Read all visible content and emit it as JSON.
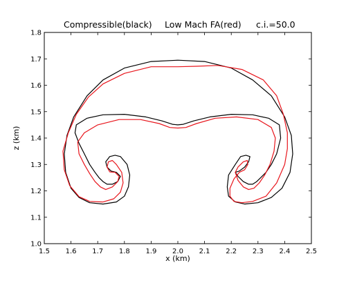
{
  "chart_data": {
    "type": "line",
    "title_parts": [
      "Compressible(black)",
      "Low Mach FA(red)",
      "c.i.=50.0"
    ],
    "xlabel": "x (km)",
    "ylabel": "z (km)",
    "xlim": [
      1.5,
      2.5
    ],
    "ylim": [
      1.0,
      1.8
    ],
    "xticks": [
      "1.5",
      "1.6",
      "1.7",
      "1.8",
      "1.9",
      "2.0",
      "2.1",
      "2.2",
      "2.3",
      "2.4",
      "2.5"
    ],
    "yticks": [
      "1.0",
      "1.1",
      "1.2",
      "1.3",
      "1.4",
      "1.5",
      "1.6",
      "1.7",
      "1.8"
    ],
    "grid": false,
    "series": [
      {
        "name": "Compressible",
        "color": "#000000",
        "x": [
          2.0,
          1.9,
          1.8,
          1.72,
          1.66,
          1.61,
          1.585,
          1.575,
          1.58,
          1.6,
          1.63,
          1.67,
          1.72,
          1.77,
          1.8,
          1.815,
          1.82,
          1.81,
          1.785,
          1.765,
          1.745,
          1.73,
          1.735,
          1.75,
          1.77,
          1.785,
          1.775,
          1.755,
          1.735,
          1.72,
          1.705,
          1.69,
          1.67,
          1.65,
          1.63,
          1.615,
          1.62,
          1.66,
          1.72,
          1.8,
          1.88,
          1.94,
          1.98,
          2.0,
          2.02,
          2.06,
          2.12,
          2.2,
          2.28,
          2.34,
          2.38,
          2.385,
          2.37,
          2.35,
          2.33,
          2.31,
          2.295,
          2.28,
          2.265,
          2.245,
          2.225,
          2.215,
          2.23,
          2.25,
          2.265,
          2.27,
          2.255,
          2.235,
          2.215,
          2.19,
          2.185,
          2.19,
          2.215,
          2.25,
          2.3,
          2.35,
          2.39,
          2.42,
          2.43,
          2.425,
          2.4,
          2.35,
          2.28,
          2.2,
          2.1,
          2.0
        ],
        "y": [
          1.695,
          1.69,
          1.665,
          1.62,
          1.56,
          1.48,
          1.41,
          1.34,
          1.27,
          1.21,
          1.175,
          1.155,
          1.15,
          1.158,
          1.18,
          1.215,
          1.26,
          1.3,
          1.33,
          1.335,
          1.33,
          1.31,
          1.29,
          1.275,
          1.27,
          1.255,
          1.235,
          1.225,
          1.225,
          1.235,
          1.25,
          1.27,
          1.3,
          1.34,
          1.38,
          1.42,
          1.45,
          1.475,
          1.488,
          1.49,
          1.48,
          1.465,
          1.452,
          1.45,
          1.452,
          1.465,
          1.48,
          1.49,
          1.488,
          1.475,
          1.45,
          1.4,
          1.34,
          1.3,
          1.27,
          1.25,
          1.235,
          1.225,
          1.225,
          1.235,
          1.255,
          1.27,
          1.275,
          1.29,
          1.31,
          1.33,
          1.335,
          1.33,
          1.3,
          1.26,
          1.215,
          1.18,
          1.158,
          1.15,
          1.155,
          1.175,
          1.21,
          1.27,
          1.34,
          1.41,
          1.48,
          1.56,
          1.62,
          1.665,
          1.69,
          1.695
        ]
      },
      {
        "name": "Low Mach FA",
        "color": "#e8141b",
        "x": [
          2.0,
          1.9,
          1.8,
          1.72,
          1.665,
          1.62,
          1.59,
          1.57,
          1.575,
          1.595,
          1.63,
          1.67,
          1.72,
          1.76,
          1.785,
          1.795,
          1.79,
          1.77,
          1.755,
          1.74,
          1.735,
          1.745,
          1.765,
          1.78,
          1.775,
          1.755,
          1.73,
          1.71,
          1.69,
          1.67,
          1.65,
          1.63,
          1.625,
          1.65,
          1.7,
          1.78,
          1.86,
          1.93,
          1.97,
          2.0,
          2.03,
          2.07,
          2.14,
          2.22,
          2.3,
          2.35,
          2.365,
          2.36,
          2.345,
          2.325,
          2.305,
          2.285,
          2.265,
          2.245,
          2.225,
          2.215,
          2.225,
          2.245,
          2.26,
          2.262,
          2.25,
          2.23,
          2.21,
          2.195,
          2.195,
          2.21,
          2.24,
          2.28,
          2.33,
          2.37,
          2.4,
          2.41,
          2.41,
          2.395,
          2.37,
          2.32,
          2.24,
          2.15,
          2.07,
          2.0
        ],
        "y": [
          1.67,
          1.67,
          1.645,
          1.605,
          1.555,
          1.49,
          1.42,
          1.35,
          1.28,
          1.22,
          1.178,
          1.16,
          1.158,
          1.17,
          1.195,
          1.23,
          1.27,
          1.3,
          1.315,
          1.31,
          1.29,
          1.272,
          1.27,
          1.255,
          1.235,
          1.215,
          1.205,
          1.215,
          1.235,
          1.265,
          1.3,
          1.34,
          1.385,
          1.42,
          1.45,
          1.47,
          1.47,
          1.455,
          1.44,
          1.438,
          1.44,
          1.455,
          1.475,
          1.48,
          1.47,
          1.44,
          1.4,
          1.35,
          1.3,
          1.26,
          1.23,
          1.21,
          1.205,
          1.215,
          1.24,
          1.27,
          1.29,
          1.31,
          1.315,
          1.3,
          1.28,
          1.27,
          1.245,
          1.21,
          1.18,
          1.16,
          1.155,
          1.16,
          1.18,
          1.23,
          1.3,
          1.36,
          1.42,
          1.49,
          1.56,
          1.62,
          1.66,
          1.675,
          1.672,
          1.67
        ]
      }
    ]
  }
}
